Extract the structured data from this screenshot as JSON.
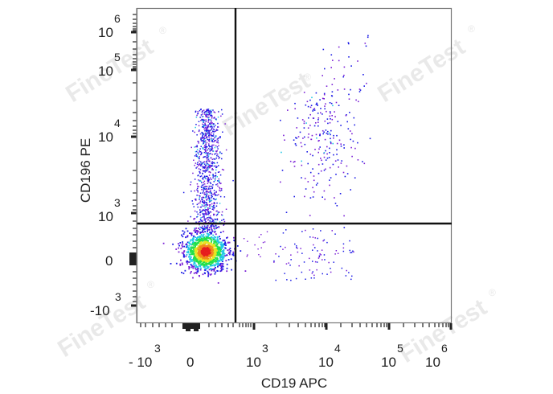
{
  "chart_data": {
    "type": "scatter",
    "subtype": "flow-cytometry-density-dot-plot",
    "title": "",
    "xlabel": "CD19 APC",
    "ylabel": "CD196 PE",
    "x_scale": "biexponential",
    "y_scale": "biexponential",
    "x_ticks": [
      {
        "base": "- 10",
        "exp": "3",
        "value": -1000
      },
      {
        "base": "0",
        "exp": "",
        "value": 0
      },
      {
        "base": "10",
        "exp": "3",
        "value": 1000
      },
      {
        "base": "10",
        "exp": "4",
        "value": 10000
      },
      {
        "base": "10",
        "exp": "5",
        "value": 100000
      },
      {
        "base": "10",
        "exp": "6",
        "value": 1000000
      }
    ],
    "y_ticks": [
      {
        "base": "10",
        "exp": "6",
        "value": 1000000
      },
      {
        "base": "10",
        "exp": "5",
        "value": 100000
      },
      {
        "base": "10",
        "exp": "4",
        "value": 10000
      },
      {
        "base": "10",
        "exp": "3",
        "value": 1000
      },
      {
        "base": "0",
        "exp": "",
        "value": 0
      },
      {
        "base": "-10",
        "exp": "3",
        "value": -1000
      }
    ],
    "xlim": [
      -1500,
      1000000
    ],
    "ylim": [
      -1500,
      1000000
    ],
    "grid": false,
    "legend": null,
    "quadrant_gates": {
      "x": 600,
      "y": 700
    },
    "populations": [
      {
        "name": "CD19- CD196- (main cluster)",
        "x_center": 150,
        "y_center": 50,
        "density": "very high",
        "colormap": "blue-cyan-green-yellow-red"
      },
      {
        "name": "CD19- CD196+ (vertical stream)",
        "x_center": 150,
        "y_range": [
          700,
          25000
        ],
        "density": "medium"
      },
      {
        "name": "CD19+ CD196+ (B cells)",
        "x_center": 9000,
        "y_center": 9000,
        "density": "low"
      },
      {
        "name": "CD19+ CD196- (sparse)",
        "x_range": [
          1500,
          30000
        ],
        "y_range": [
          -600,
          600
        ],
        "density": "very low"
      }
    ],
    "density_colors": [
      "#7a1fd6",
      "#1a1ae6",
      "#22c8e6",
      "#22e04a",
      "#e6e622",
      "#f08a1a",
      "#e61e1e"
    ]
  },
  "watermark": {
    "text": "FineTest",
    "mark": "®"
  }
}
